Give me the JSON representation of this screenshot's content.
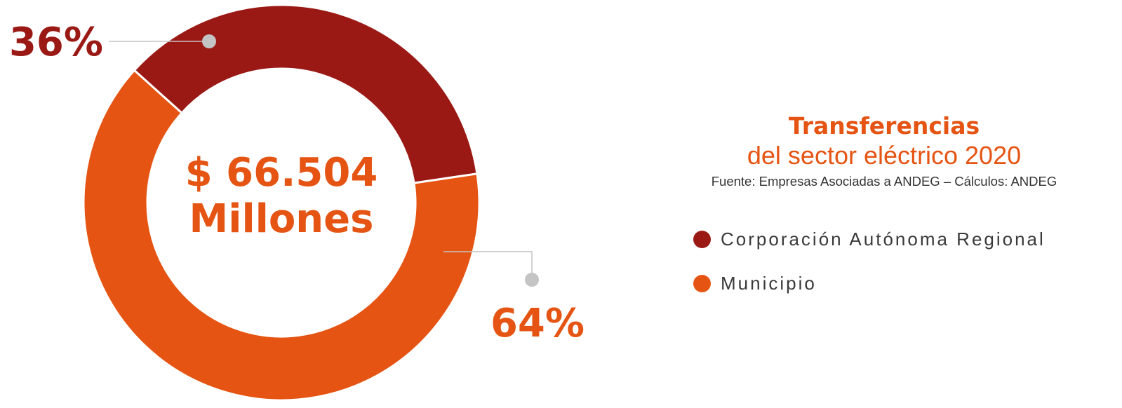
{
  "chart_data": {
    "type": "pie",
    "title": "Transferencias",
    "subtitle": "del sector eléctrico 2020",
    "source": "Fuente: Empresas Asociadas a ANDEG – Cálculos: ANDEG",
    "center_label": {
      "line1": "$ 66.504",
      "line2": "Millones"
    },
    "slices": [
      {
        "name": "Corporación Autónoma Regional",
        "value": 36,
        "label": "36%",
        "color": "#9a1915"
      },
      {
        "name": "Municipio",
        "value": 64,
        "label": "64%",
        "color": "#e55412"
      }
    ]
  },
  "colors": {
    "accent": "#e55412",
    "dark_red": "#9a1915",
    "leader": "#c4c4c4"
  }
}
